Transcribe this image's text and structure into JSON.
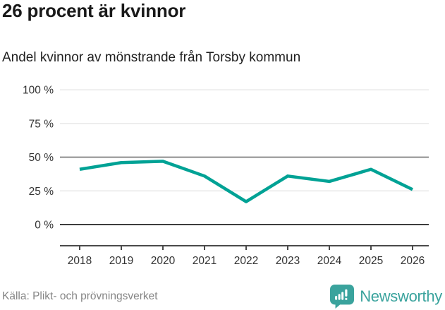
{
  "header": {
    "title": "26 procent är kvinnor",
    "subtitle": "Andel kvinnor av mönstrande från Torsby kommun"
  },
  "chart_data": {
    "type": "line",
    "title": "26 procent är kvinnor",
    "subtitle": "Andel kvinnor av mönstrande från Torsby kommun",
    "categories": [
      "2018",
      "2019",
      "2020",
      "2021",
      "2022",
      "2023",
      "2024",
      "2025",
      "2026"
    ],
    "series": [
      {
        "name": "Andel kvinnor av mönstrande",
        "values": [
          41,
          46,
          47,
          36,
          17,
          36,
          32,
          41,
          26
        ]
      }
    ],
    "xlabel": "",
    "ylabel": "",
    "ylim": [
      0,
      100
    ],
    "yticks": [
      {
        "value": 100,
        "label": "100 %"
      },
      {
        "value": 75,
        "label": "75 %"
      },
      {
        "value": 50,
        "label": "50 %"
      },
      {
        "value": 25,
        "label": "25 %"
      },
      {
        "value": 0,
        "label": "0 %"
      }
    ],
    "grid": true,
    "legend": "none",
    "line_color": "#00a295"
  },
  "footer": {
    "source": "Källa: Plikt- och prövningsverket",
    "brand": "Newsworthy",
    "brand_color": "#3aa39d"
  }
}
